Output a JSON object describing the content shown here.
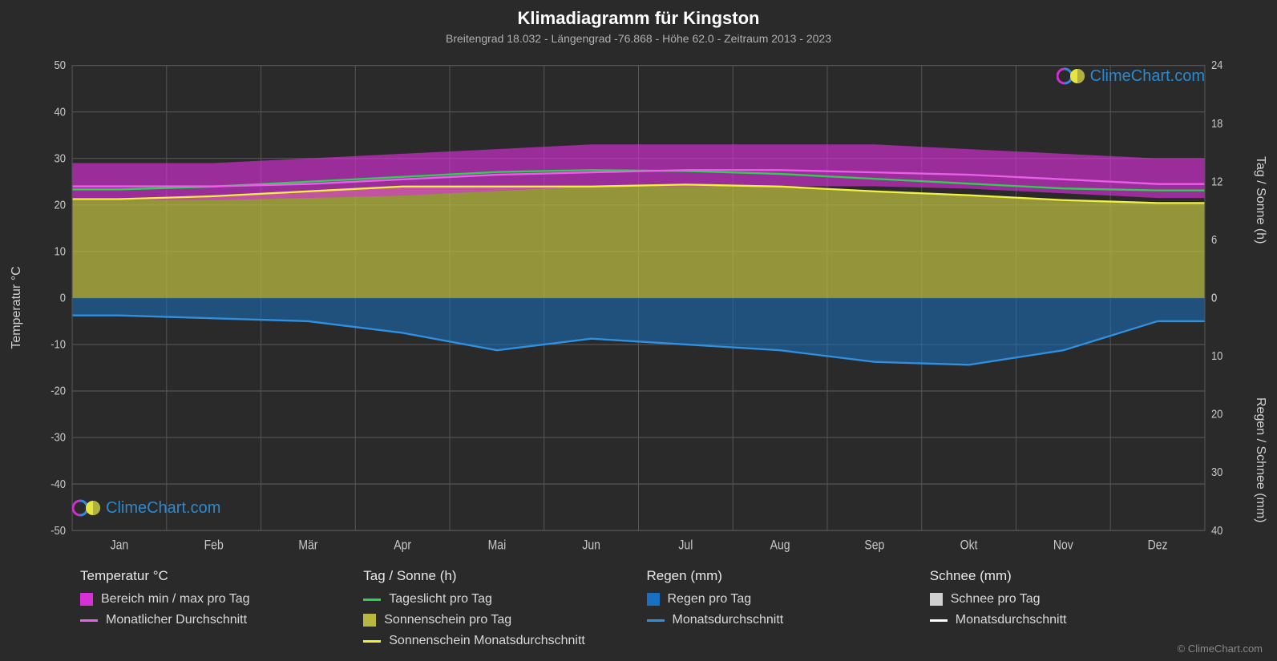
{
  "title": "Klimadiagramm für Kingston",
  "subtitle": "Breitengrad 18.032 - Längengrad -76.868 - Höhe 62.0 - Zeitraum 2013 - 2023",
  "y_axis_left": {
    "label": "Temperatur °C",
    "min": -50,
    "max": 50,
    "step": 10,
    "ticks": [
      -50,
      -40,
      -30,
      -20,
      -10,
      0,
      10,
      20,
      30,
      40,
      50
    ]
  },
  "y_axis_right_top": {
    "label": "Tag / Sonne (h)",
    "min": 0,
    "max": 24,
    "step": 6,
    "ticks": [
      0,
      6,
      12,
      18,
      24
    ]
  },
  "y_axis_right_bottom": {
    "label": "Regen / Schnee (mm)",
    "min": 0,
    "max": 40,
    "step": 10,
    "ticks": [
      0,
      10,
      20,
      30,
      40
    ]
  },
  "months": [
    "Jan",
    "Feb",
    "Mär",
    "Apr",
    "Mai",
    "Jun",
    "Jul",
    "Aug",
    "Sep",
    "Okt",
    "Nov",
    "Dez"
  ],
  "colors": {
    "background": "#2a2a2a",
    "grid": "#555555",
    "text": "#d0d0d0",
    "temp_range": "#d830d8",
    "temp_avg": "#e860e8",
    "daylight": "#2fd04f",
    "sunshine_fill": "#b8b840",
    "sunshine_line": "#f0f040",
    "rain_fill": "#1870c0",
    "rain_line": "#3090e0",
    "snow_fill": "#d0d0d0",
    "snow_line": "#ffffff",
    "watermark_text": "#2b8fd9"
  },
  "series": {
    "temp_min": [
      21,
      21,
      21.5,
      22,
      23,
      24,
      24,
      24,
      24,
      23.5,
      22.5,
      21.5
    ],
    "temp_max": [
      29,
      29,
      30,
      31,
      32,
      33,
      33,
      33,
      33,
      32,
      31,
      30
    ],
    "temp_avg": [
      24,
      24,
      24.5,
      25.5,
      26.5,
      27,
      27.5,
      27.5,
      27,
      26.5,
      25.5,
      24.5
    ],
    "daylight_h": [
      11.2,
      11.5,
      12,
      12.5,
      13,
      13.2,
      13.1,
      12.8,
      12.3,
      11.8,
      11.3,
      11.1
    ],
    "sunshine_h": [
      10.2,
      10.5,
      11,
      11.5,
      11.5,
      11.5,
      11.7,
      11.5,
      11,
      10.6,
      10.1,
      9.8
    ],
    "rain_mm_avg": [
      3,
      3.5,
      4,
      6,
      9,
      7,
      8,
      9,
      11,
      11.5,
      9,
      4
    ],
    "snow_mm_avg": [
      0,
      0,
      0,
      0,
      0,
      0,
      0,
      0,
      0,
      0,
      0,
      0
    ]
  },
  "legend": {
    "groups": [
      {
        "header": "Temperatur °C",
        "items": [
          {
            "type": "box",
            "color": "#d830d8",
            "label": "Bereich min / max pro Tag"
          },
          {
            "type": "line",
            "color": "#e860e8",
            "label": "Monatlicher Durchschnitt"
          }
        ]
      },
      {
        "header": "Tag / Sonne (h)",
        "items": [
          {
            "type": "line",
            "color": "#2fd04f",
            "label": "Tageslicht pro Tag"
          },
          {
            "type": "box",
            "color": "#b8b840",
            "label": "Sonnenschein pro Tag"
          },
          {
            "type": "line",
            "color": "#f0f040",
            "label": "Sonnenschein Monatsdurchschnitt"
          }
        ]
      },
      {
        "header": "Regen (mm)",
        "items": [
          {
            "type": "box",
            "color": "#1870c0",
            "label": "Regen pro Tag"
          },
          {
            "type": "line",
            "color": "#3090e0",
            "label": "Monatsdurchschnitt"
          }
        ]
      },
      {
        "header": "Schnee (mm)",
        "items": [
          {
            "type": "box",
            "color": "#d0d0d0",
            "label": "Schnee pro Tag"
          },
          {
            "type": "line",
            "color": "#ffffff",
            "label": "Monatsdurchschnitt"
          }
        ]
      }
    ]
  },
  "watermark_text": "ClimeChart.com",
  "copyright": "© ClimeChart.com"
}
